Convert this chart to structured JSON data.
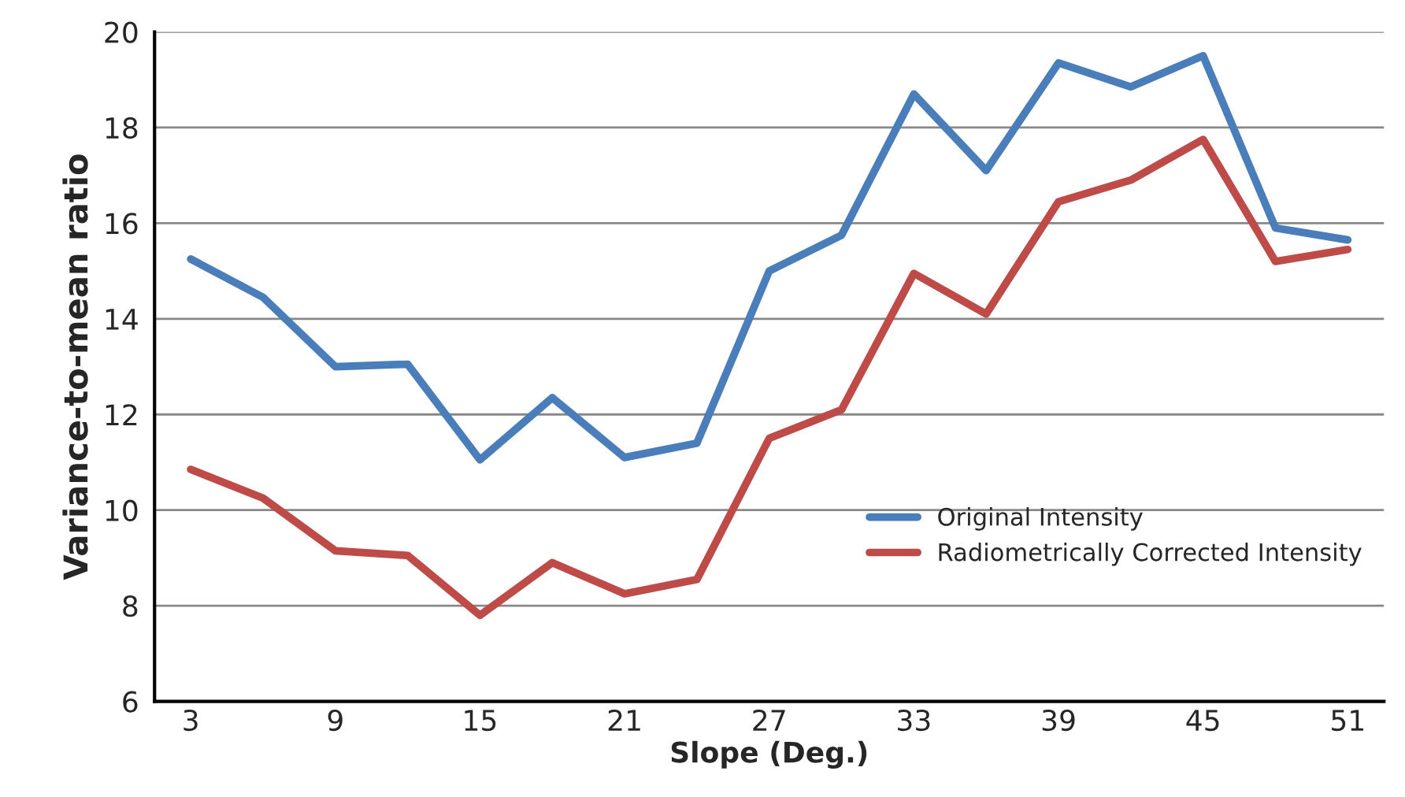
{
  "chart_data": {
    "type": "line",
    "xlabel": "Slope (Deg.)",
    "ylabel": "Variance-to-mean ratio",
    "categories": [
      "3",
      null,
      "9",
      null,
      "15",
      null,
      "21",
      null,
      "27",
      null,
      "33",
      null,
      "39",
      null,
      "45",
      null,
      "51"
    ],
    "series": [
      {
        "name": "Original Intensity",
        "color": "#4a7ebb",
        "values": [
          15.25,
          14.45,
          13.0,
          13.05,
          11.05,
          12.35,
          11.1,
          11.4,
          15.0,
          15.75,
          18.7,
          17.1,
          19.35,
          18.85,
          19.5,
          15.9,
          15.65
        ]
      },
      {
        "name": "Radiometrically Corrected Intensity",
        "color": "#be4b48",
        "values": [
          10.85,
          10.25,
          9.15,
          9.05,
          7.8,
          8.9,
          8.25,
          8.55,
          11.5,
          12.1,
          14.95,
          14.1,
          16.45,
          16.9,
          17.75,
          15.2,
          15.45
        ]
      }
    ],
    "ylim": [
      6,
      20
    ],
    "yticks": [
      6,
      8,
      10,
      12,
      14,
      16,
      18,
      20
    ],
    "grid": "y",
    "legend": "bottom right",
    "marker": "none",
    "line_style": "solid"
  }
}
